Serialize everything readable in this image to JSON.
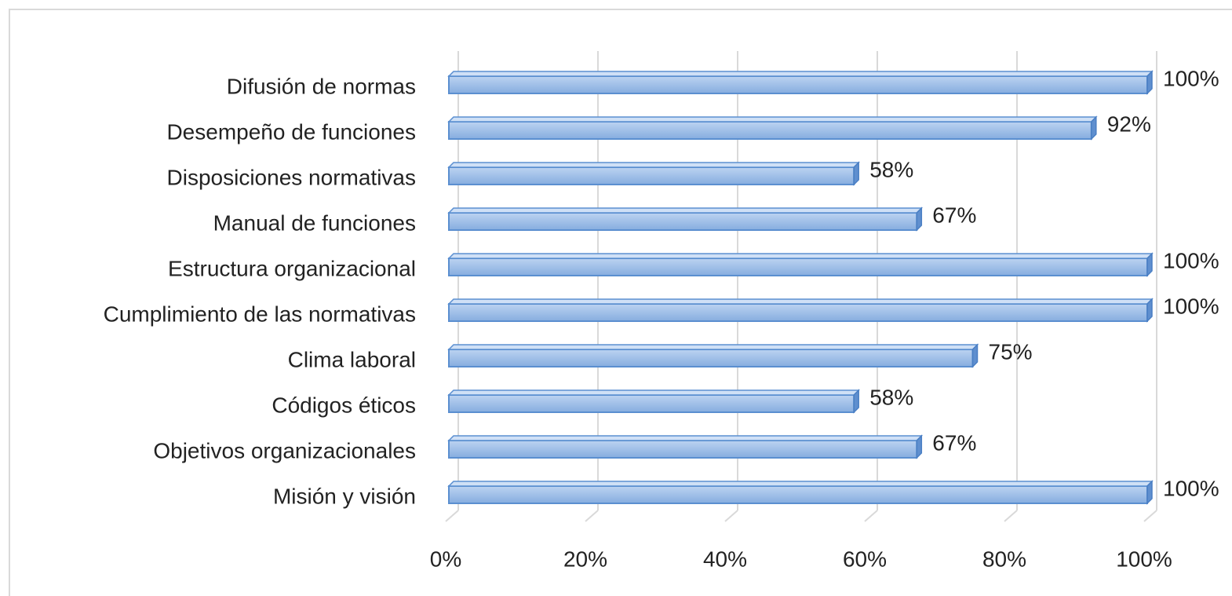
{
  "chart_data": {
    "type": "bar",
    "orientation": "horizontal",
    "categories": [
      "Difusión de normas",
      "Desempeño de funciones",
      "Disposiciones normativas",
      "Manual de funciones",
      "Estructura organizacional",
      "Cumplimiento de las normativas",
      "Clima laboral",
      "Códigos éticos",
      "Objetivos organizacionales",
      "Misión y visión"
    ],
    "values": [
      100,
      92,
      58,
      67,
      100,
      100,
      75,
      58,
      67,
      100
    ],
    "value_labels": [
      "100%",
      "92%",
      "58%",
      "67%",
      "100%",
      "100%",
      "75%",
      "58%",
      "67%",
      "100%"
    ],
    "color": "#8fb4e3",
    "xlim": [
      0,
      100
    ],
    "xticks": [
      {
        "value": 0,
        "label": "0%"
      },
      {
        "value": 20,
        "label": "20%"
      },
      {
        "value": 40,
        "label": "40%"
      },
      {
        "value": 60,
        "label": "60%"
      },
      {
        "value": 80,
        "label": "80%"
      },
      {
        "value": 100,
        "label": "100%"
      }
    ],
    "grid": true
  }
}
